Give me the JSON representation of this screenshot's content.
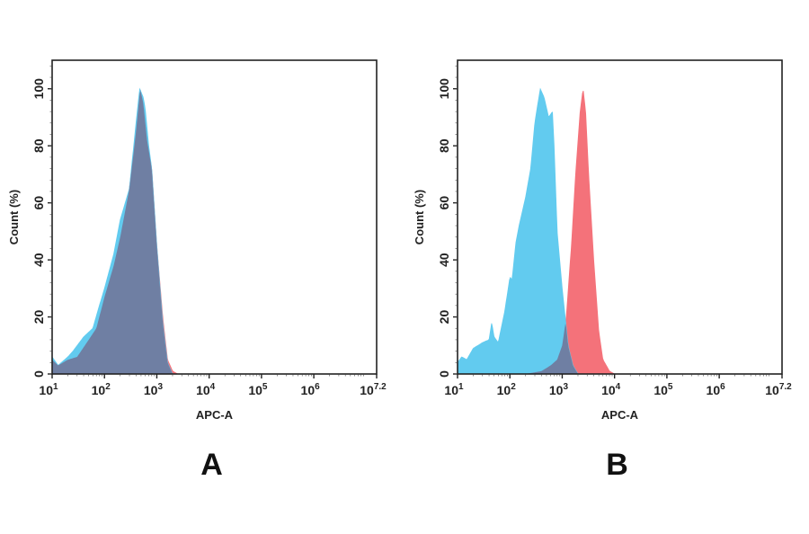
{
  "colors": {
    "sample": "#f4727a",
    "control": "#62cbef",
    "overlap": "#6f7fa3",
    "frame": "#222222"
  },
  "chart_data": [
    {
      "type": "area",
      "panel_label": "A",
      "xlabel": "APC-A",
      "ylabel": "Count (%)",
      "x_scale": "log",
      "xlim": [
        10,
        15848932
      ],
      "ylim": [
        0,
        110
      ],
      "x_ticks": [
        10,
        100,
        1000,
        10000,
        100000,
        1000000,
        15848932
      ],
      "x_tick_labels": [
        [
          "10",
          "1"
        ],
        [
          "10",
          "2"
        ],
        [
          "10",
          "3"
        ],
        [
          "10",
          "4"
        ],
        [
          "10",
          "5"
        ],
        [
          "10",
          "6"
        ],
        [
          "10",
          "7.2"
        ]
      ],
      "y_ticks": [
        0,
        20,
        40,
        60,
        80,
        100
      ],
      "y_tick_labels": [
        "0",
        "20",
        "40",
        "60",
        "80",
        "100"
      ],
      "grid": false,
      "series": [
        {
          "color": "#f4727a",
          "points": [
            [
              10,
              5
            ],
            [
              13,
              3
            ],
            [
              20,
              5
            ],
            [
              30,
              6
            ],
            [
              50,
              12
            ],
            [
              70,
              16
            ],
            [
              100,
              27
            ],
            [
              150,
              38
            ],
            [
              200,
              48
            ],
            [
              300,
              65
            ],
            [
              400,
              85
            ],
            [
              480,
              100
            ],
            [
              550,
              95
            ],
            [
              650,
              82
            ],
            [
              800,
              72
            ],
            [
              1000,
              45
            ],
            [
              1300,
              20
            ],
            [
              1600,
              5
            ],
            [
              2000,
              1
            ],
            [
              2500,
              0
            ],
            [
              100000,
              0
            ],
            [
              15848932,
              0
            ]
          ]
        },
        {
          "color": "#62cbef",
          "points": [
            [
              10,
              6
            ],
            [
              13,
              3
            ],
            [
              20,
              6
            ],
            [
              25,
              8
            ],
            [
              40,
              13
            ],
            [
              60,
              16
            ],
            [
              80,
              24
            ],
            [
              100,
              30
            ],
            [
              150,
              42
            ],
            [
              200,
              54
            ],
            [
              300,
              65
            ],
            [
              400,
              88
            ],
            [
              470,
              100
            ],
            [
              550,
              97
            ],
            [
              600,
              93
            ],
            [
              700,
              80
            ],
            [
              800,
              72
            ],
            [
              1000,
              45
            ],
            [
              1300,
              18
            ],
            [
              1600,
              4
            ],
            [
              2000,
              0
            ],
            [
              15848932,
              0
            ]
          ]
        }
      ]
    },
    {
      "type": "area",
      "panel_label": "B",
      "xlabel": "APC-A",
      "ylabel": "Count (%)",
      "x_scale": "log",
      "xlim": [
        10,
        15848932
      ],
      "ylim": [
        0,
        110
      ],
      "x_ticks": [
        10,
        100,
        1000,
        10000,
        100000,
        1000000,
        15848932
      ],
      "x_tick_labels": [
        [
          "10",
          "1"
        ],
        [
          "10",
          "2"
        ],
        [
          "10",
          "3"
        ],
        [
          "10",
          "4"
        ],
        [
          "10",
          "5"
        ],
        [
          "10",
          "6"
        ],
        [
          "10",
          "7.2"
        ]
      ],
      "y_ticks": [
        0,
        20,
        40,
        60,
        80,
        100
      ],
      "y_tick_labels": [
        "0",
        "20",
        "40",
        "60",
        "80",
        "100"
      ],
      "grid": false,
      "series": [
        {
          "color": "#f4727a",
          "points": [
            [
              10,
              0
            ],
            [
              200,
              0
            ],
            [
              400,
              1
            ],
            [
              600,
              3
            ],
            [
              800,
              5
            ],
            [
              1000,
              10
            ],
            [
              1200,
              20
            ],
            [
              1500,
              45
            ],
            [
              1800,
              70
            ],
            [
              2200,
              92
            ],
            [
              2500,
              100
            ],
            [
              2800,
              92
            ],
            [
              3200,
              70
            ],
            [
              4000,
              40
            ],
            [
              5000,
              15
            ],
            [
              6000,
              5
            ],
            [
              8000,
              1
            ],
            [
              10000,
              0
            ],
            [
              15848932,
              0
            ]
          ]
        },
        {
          "color": "#62cbef",
          "points": [
            [
              10,
              4
            ],
            [
              12,
              6
            ],
            [
              15,
              5
            ],
            [
              20,
              9
            ],
            [
              30,
              11
            ],
            [
              40,
              12
            ],
            [
              45,
              18
            ],
            [
              50,
              13
            ],
            [
              60,
              11
            ],
            [
              80,
              22
            ],
            [
              100,
              34
            ],
            [
              110,
              33
            ],
            [
              130,
              46
            ],
            [
              150,
              52
            ],
            [
              200,
              62
            ],
            [
              250,
              72
            ],
            [
              300,
              88
            ],
            [
              380,
              100
            ],
            [
              450,
              97
            ],
            [
              550,
              90
            ],
            [
              650,
              92
            ],
            [
              700,
              80
            ],
            [
              800,
              50
            ],
            [
              1000,
              30
            ],
            [
              1300,
              10
            ],
            [
              1600,
              3
            ],
            [
              2000,
              0
            ],
            [
              15848932,
              0
            ]
          ]
        }
      ]
    }
  ]
}
